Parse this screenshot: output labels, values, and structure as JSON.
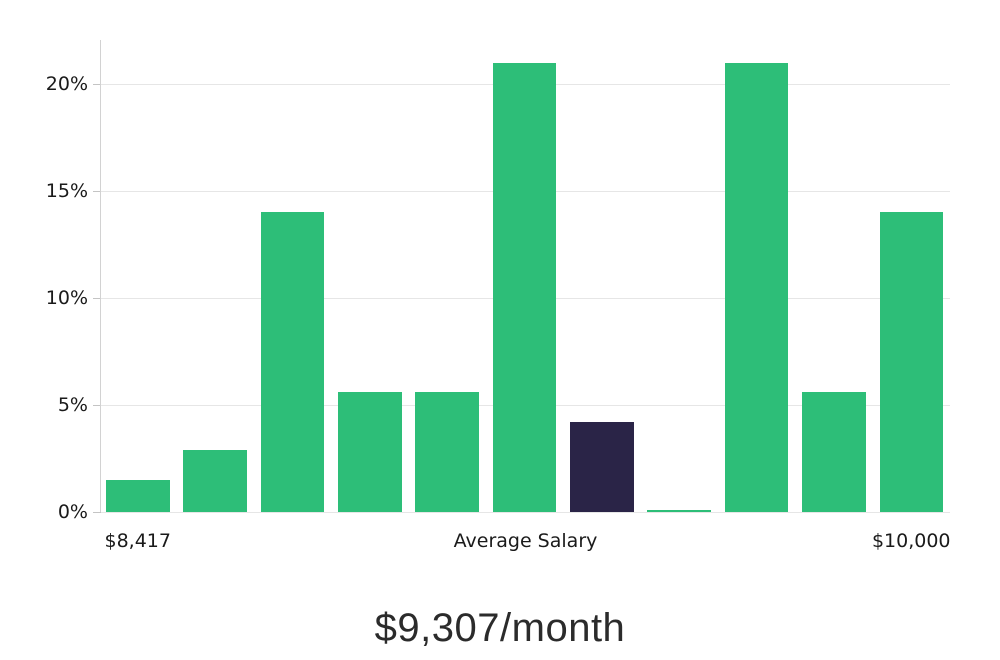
{
  "chart_data": {
    "type": "bar",
    "title": "$9,307/month",
    "values": [
      1.5,
      2.9,
      14.0,
      5.6,
      5.6,
      21.0,
      4.2,
      0.1,
      21.0,
      5.6,
      14.0
    ],
    "highlight_index": 6,
    "y_ticks": [
      {
        "value": 0,
        "label": "0%"
      },
      {
        "value": 5,
        "label": "5%"
      },
      {
        "value": 10,
        "label": "10%"
      },
      {
        "value": 15,
        "label": "15%"
      },
      {
        "value": 20,
        "label": "20%"
      }
    ],
    "x_ticks": [
      {
        "label": "$8,417",
        "bar_index": 0
      },
      {
        "label": "Average Salary",
        "anchor": "center"
      },
      {
        "label": "$10,000",
        "bar_index": 10
      }
    ],
    "ylim": [
      0,
      22.1
    ],
    "grid": true,
    "legend_position": "none",
    "colors": {
      "bar": "#2dbe78",
      "highlight": "#2a2447",
      "gridline": "#e6e6e6",
      "axis": "#d2d2d2",
      "tick": "#c4c4c4",
      "tick_label": "#1a1a1a",
      "title": "#2b2b2b"
    }
  }
}
